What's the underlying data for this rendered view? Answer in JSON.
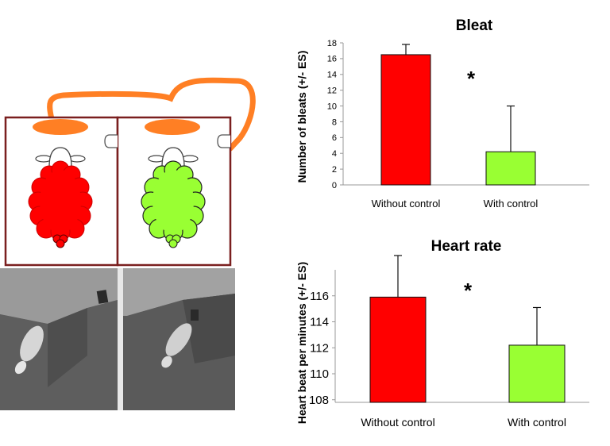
{
  "colors": {
    "no_control": "#ff0000",
    "with_control": "#99ff33",
    "cable": "#ff7f24",
    "box_border": "#7a1f1f"
  },
  "illustration": {
    "content": "Diagram of two pens: sheep in red (left) and in green (right) beneath orange feeders linked by an orange cable; below, a grayscale photo of two sheep in pens"
  },
  "chart_data": [
    {
      "type": "bar",
      "title": "Bleat",
      "ylabel": "Number of bleats (+/- ES)",
      "categories": [
        "Without control",
        "With control"
      ],
      "values": [
        16.5,
        4.2
      ],
      "errors": [
        1.3,
        5.8
      ],
      "ylim": [
        0,
        18
      ],
      "yticks": [
        "0",
        "2",
        "4",
        "6",
        "8",
        "10",
        "12",
        "14",
        "16",
        "18"
      ],
      "annotation": "*",
      "colors": [
        "#ff0000",
        "#99ff33"
      ]
    },
    {
      "type": "bar",
      "title": "Heart rate",
      "ylabel": "Heart beat per minutes (+/- ES)",
      "categories": [
        "Without control",
        "With control"
      ],
      "values": [
        115.9,
        112.2
      ],
      "errors": [
        3.2,
        2.9
      ],
      "ylim": [
        107.8,
        118
      ],
      "yticks": [
        "108",
        "110",
        "112",
        "114",
        "116"
      ],
      "annotation": "*",
      "colors": [
        "#ff0000",
        "#99ff33"
      ]
    }
  ]
}
